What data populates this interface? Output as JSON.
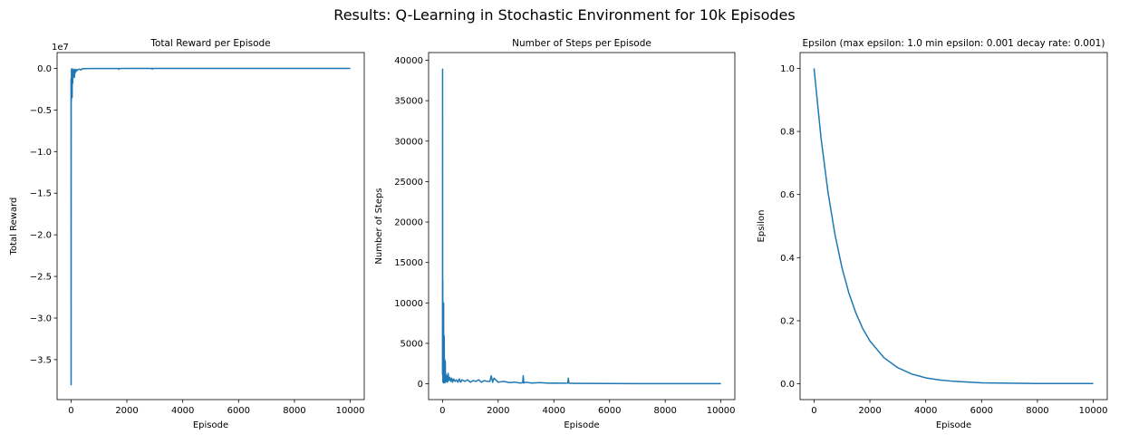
{
  "suptitle": "Results: Q-Learning in Stochastic Environment for 10k Episodes",
  "colors": {
    "series": "#1f77b4"
  },
  "chart_data": [
    {
      "type": "line",
      "title": "Total Reward per Episode",
      "xlabel": "Episode",
      "ylabel": "Total Reward",
      "offset_label": "1e7",
      "xlim": [
        -500,
        10500
      ],
      "ylim": [
        -39800000,
        1900000
      ],
      "xticks": [
        0,
        2000,
        4000,
        6000,
        8000,
        10000
      ],
      "xtick_labels": [
        "0",
        "2000",
        "4000",
        "6000",
        "8000",
        "10000"
      ],
      "yticks": [
        0,
        -5000000,
        -10000000,
        -15000000,
        -20000000,
        -25000000,
        -30000000,
        -35000000
      ],
      "ytick_labels": [
        "0.0",
        "−0.5",
        "−1.0",
        "−1.5",
        "−2.0",
        "−2.5",
        "−3.0",
        "−3.5"
      ],
      "grid": false,
      "series": [
        {
          "x": [
            0,
            3,
            6,
            10,
            15,
            20,
            25,
            30,
            35,
            40,
            45,
            50,
            55,
            60,
            70,
            80,
            90,
            100,
            110,
            120,
            140,
            160,
            180,
            200,
            250,
            300,
            350,
            400,
            500,
            700,
            1000,
            1500,
            1700,
            1710,
            1720,
            2000,
            2500,
            2900,
            2910,
            2920,
            3000,
            4000,
            4500,
            5000,
            6000,
            7000,
            8000,
            9000,
            10000
          ],
          "y": [
            -1200000,
            -38000000,
            -2000000,
            -4000000,
            -100000,
            -3000000,
            -200000,
            -1500000,
            -100000,
            -3500000,
            -50000,
            -800000,
            -100000,
            -1800000,
            -400000,
            -1000000,
            -300000,
            -600000,
            -100000,
            -1100000,
            -200000,
            -500000,
            -100000,
            -300000,
            -150000,
            -80000,
            -200000,
            -50000,
            -30000,
            -20000,
            -20000,
            -15000,
            -15000,
            -120000,
            -15000,
            -12000,
            -10000,
            -10000,
            -100000,
            -10000,
            -8000,
            -6000,
            -6000,
            -5000,
            -4000,
            -3000,
            -3000,
            -3000,
            -2000
          ]
        }
      ]
    },
    {
      "type": "line",
      "title": "Number of Steps per Episode",
      "xlabel": "Episode",
      "ylabel": "Number of Steps",
      "xlim": [
        -500,
        10500
      ],
      "ylim": [
        -1950,
        40950
      ],
      "xticks": [
        0,
        2000,
        4000,
        6000,
        8000,
        10000
      ],
      "xtick_labels": [
        "0",
        "2000",
        "4000",
        "6000",
        "8000",
        "10000"
      ],
      "yticks": [
        0,
        5000,
        10000,
        15000,
        20000,
        25000,
        30000,
        35000,
        40000
      ],
      "ytick_labels": [
        "0",
        "5000",
        "10000",
        "15000",
        "20000",
        "25000",
        "30000",
        "35000",
        "40000"
      ],
      "grid": false,
      "series": [
        {
          "x": [
            0,
            3,
            6,
            10,
            15,
            20,
            25,
            30,
            35,
            40,
            45,
            50,
            55,
            60,
            70,
            80,
            90,
            100,
            110,
            120,
            140,
            160,
            180,
            200,
            230,
            260,
            300,
            330,
            360,
            400,
            450,
            500,
            550,
            600,
            650,
            700,
            800,
            900,
            1000,
            1100,
            1200,
            1300,
            1400,
            1500,
            1600,
            1700,
            1750,
            1800,
            1850,
            2000,
            2200,
            2400,
            2600,
            2800,
            2880,
            2900,
            2920,
            3000,
            3200,
            3500,
            3800,
            4000,
            4200,
            4400,
            4500,
            4520,
            4540,
            4600,
            5000,
            6000,
            7000,
            8000,
            9000,
            10000
          ],
          "y": [
            1200,
            38900,
            1000,
            12800,
            200,
            10000,
            300,
            4500,
            200,
            10000,
            100,
            6000,
            200,
            5900,
            300,
            3000,
            150,
            2800,
            200,
            1200,
            300,
            1000,
            200,
            1300,
            400,
            800,
            300,
            700,
            200,
            600,
            300,
            500,
            200,
            600,
            200,
            500,
            300,
            500,
            200,
            400,
            300,
            500,
            200,
            400,
            300,
            300,
            1000,
            200,
            700,
            200,
            300,
            150,
            200,
            100,
            150,
            1000,
            100,
            200,
            100,
            150,
            80,
            100,
            80,
            80,
            100,
            700,
            80,
            60,
            50,
            40,
            30,
            30,
            20,
            20
          ]
        }
      ]
    },
    {
      "type": "line",
      "title": "Epsilon (max epsilon: 1.0 min epsilon: 0.001 decay rate: 0.001)",
      "xlabel": "Episode",
      "ylabel": "Epsilon",
      "xlim": [
        -500,
        10500
      ],
      "ylim": [
        -0.05,
        1.05
      ],
      "xticks": [
        0,
        2000,
        4000,
        6000,
        8000,
        10000
      ],
      "xtick_labels": [
        "0",
        "2000",
        "4000",
        "6000",
        "8000",
        "10000"
      ],
      "yticks": [
        0.0,
        0.2,
        0.4,
        0.6,
        0.8,
        1.0
      ],
      "ytick_labels": [
        "0.0",
        "0.2",
        "0.4",
        "0.6",
        "0.8",
        "1.0"
      ],
      "grid": false,
      "series": [
        {
          "x": [
            0,
            250,
            500,
            750,
            1000,
            1250,
            1500,
            1750,
            2000,
            2500,
            3000,
            3500,
            4000,
            4500,
            5000,
            6000,
            7000,
            8000,
            9000,
            10000
          ],
          "y": [
            1.0,
            0.779,
            0.607,
            0.473,
            0.368,
            0.287,
            0.224,
            0.174,
            0.136,
            0.083,
            0.051,
            0.031,
            0.019,
            0.012,
            0.008,
            0.003,
            0.002,
            0.001,
            0.001,
            0.001
          ]
        }
      ]
    }
  ]
}
